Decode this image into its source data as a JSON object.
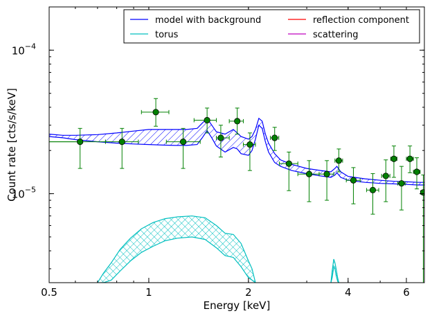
{
  "chart_data": {
    "type": "scatter",
    "xlabel": "Energy [keV]",
    "ylabel": "Count rate [cts/s/keV]",
    "xscale": "log",
    "yscale": "log",
    "xlim": [
      0.5,
      6.8
    ],
    "ylim": [
      2.4e-06,
      0.0002
    ],
    "x_ticks": [
      0.5,
      1,
      2,
      4,
      6
    ],
    "x_tick_labels": [
      "0.5",
      "1",
      "2",
      "4",
      "6"
    ],
    "y_ticks": [
      1e-05,
      0.0001
    ],
    "y_tick_labels": [
      [
        "10",
        "−5"
      ],
      [
        "10",
        "−4"
      ]
    ],
    "legend": {
      "placement": "top-right",
      "columns": 2,
      "entries": [
        {
          "label": "model with background",
          "color": "#0000ff"
        },
        {
          "label": "reflection component",
          "color": "#ff0000"
        },
        {
          "label": "torus",
          "color": "#00bfbf"
        },
        {
          "label": "scattering",
          "color": "#bf00bf"
        }
      ]
    },
    "colors": {
      "model": "#0000ff",
      "torus": "#00bfbf",
      "data_marker": "#008000",
      "data_errorbar": "#008000"
    },
    "data_points": [
      {
        "x": 0.5,
        "xerr": [
          0.5,
          0.62
        ],
        "y": 2.3e-05,
        "yerr": [
          2.3e-05,
          2.3e-05
        ]
      },
      {
        "x": 0.62,
        "xerr": [
          0.5,
          0.74
        ],
        "y": 2.3e-05,
        "yerr": [
          1.5e-05,
          2.85e-05
        ]
      },
      {
        "x": 0.83,
        "xerr": [
          0.74,
          0.93
        ],
        "y": 2.3e-05,
        "yerr": [
          1.5e-05,
          2.85e-05
        ]
      },
      {
        "x": 1.05,
        "xerr": [
          0.95,
          1.15
        ],
        "y": 3.7e-05,
        "yerr": [
          2.95e-05,
          4.6e-05
        ]
      },
      {
        "x": 1.27,
        "xerr": [
          1.13,
          1.43
        ],
        "y": 2.3e-05,
        "yerr": [
          1.5e-05,
          2.85e-05
        ]
      },
      {
        "x": 1.5,
        "xerr": [
          1.37,
          1.6
        ],
        "y": 3.25e-05,
        "yerr": [
          2.65e-05,
          3.95e-05
        ]
      },
      {
        "x": 1.65,
        "xerr": [
          1.6,
          1.75
        ],
        "y": 2.45e-05,
        "yerr": [
          1.8e-05,
          3e-05
        ]
      },
      {
        "x": 1.85,
        "xerr": [
          1.75,
          1.93
        ],
        "y": 3.2e-05,
        "yerr": [
          2.6e-05,
          3.95e-05
        ]
      },
      {
        "x": 2.02,
        "xerr": [
          1.93,
          2.1
        ],
        "y": 2.2e-05,
        "yerr": [
          1.45e-05,
          2.65e-05
        ]
      },
      {
        "x": 2.4,
        "xerr": [
          2.33,
          2.47
        ],
        "y": 2.45e-05,
        "yerr": [
          2e-05,
          2.9e-05
        ]
      },
      {
        "x": 2.65,
        "xerr": [
          2.48,
          2.82
        ],
        "y": 1.62e-05,
        "yerr": [
          1.05e-05,
          1.95e-05
        ]
      },
      {
        "x": 3.05,
        "xerr": [
          2.82,
          3.27
        ],
        "y": 1.37e-05,
        "yerr": [
          8.8e-06,
          1.7e-05
        ]
      },
      {
        "x": 3.45,
        "xerr": [
          3.27,
          3.62
        ],
        "y": 1.37e-05,
        "yerr": [
          9e-06,
          1.7e-05
        ]
      },
      {
        "x": 3.75,
        "xerr": [
          3.65,
          3.85
        ],
        "y": 1.7e-05,
        "yerr": [
          1.42e-05,
          2.05e-05
        ]
      },
      {
        "x": 4.15,
        "xerr": [
          3.95,
          4.35
        ],
        "y": 1.24e-05,
        "yerr": [
          8.5e-06,
          1.52e-05
        ]
      },
      {
        "x": 4.75,
        "xerr": [
          4.55,
          4.95
        ],
        "y": 1.06e-05,
        "yerr": [
          7.2e-06,
          1.38e-05
        ]
      },
      {
        "x": 5.2,
        "xerr": [
          5.05,
          5.35
        ],
        "y": 1.33e-05,
        "yerr": [
          8.8e-06,
          1.72e-05
        ]
      },
      {
        "x": 5.5,
        "xerr": [
          5.38,
          5.62
        ],
        "y": 1.75e-05,
        "yerr": [
          1.3e-05,
          2.15e-05
        ]
      },
      {
        "x": 5.8,
        "xerr": [
          5.65,
          5.95
        ],
        "y": 1.18e-05,
        "yerr": [
          7.7e-06,
          1.55e-05
        ]
      },
      {
        "x": 6.15,
        "xerr": [
          6.0,
          6.3
        ],
        "y": 1.75e-05,
        "yerr": [
          1.4e-05,
          2.15e-05
        ]
      },
      {
        "x": 6.45,
        "xerr": [
          6.3,
          6.6
        ],
        "y": 1.42e-05,
        "yerr": [
          1.08e-05,
          1.78e-05
        ]
      },
      {
        "x": 6.75,
        "xerr": [
          6.62,
          6.8
        ],
        "y": 1.02e-05,
        "yerr": [
          2.4e-06,
          1.35e-05
        ]
      }
    ],
    "model_band": {
      "x": [
        0.5,
        0.55,
        0.6,
        0.7,
        0.8,
        0.9,
        1.0,
        1.1,
        1.2,
        1.3,
        1.4,
        1.45,
        1.5,
        1.55,
        1.6,
        1.7,
        1.8,
        1.85,
        1.9,
        2.0,
        2.05,
        2.1,
        2.15,
        2.2,
        2.25,
        2.3,
        2.4,
        2.5,
        2.7,
        3.0,
        3.3,
        3.55,
        3.65,
        3.7,
        3.8,
        4.0,
        4.5,
        5.0,
        5.5,
        6.0,
        6.5,
        6.8
      ],
      "upper": [
        2.6e-05,
        2.55e-05,
        2.55e-05,
        2.58e-05,
        2.65e-05,
        2.73e-05,
        2.8e-05,
        2.8e-05,
        2.8e-05,
        2.8e-05,
        2.85e-05,
        3.1e-05,
        3.35e-05,
        3e-05,
        2.7e-05,
        2.6e-05,
        2.8e-05,
        2.65e-05,
        2.5e-05,
        2.4e-05,
        2.5e-05,
        2.8e-05,
        3.35e-05,
        3.2e-05,
        2.6e-05,
        2.25e-05,
        1.9e-05,
        1.72e-05,
        1.6e-05,
        1.5e-05,
        1.45e-05,
        1.42e-05,
        1.5e-05,
        1.55e-05,
        1.42e-05,
        1.32e-05,
        1.27e-05,
        1.24e-05,
        1.22e-05,
        1.21e-05,
        1.2e-05,
        1.2e-05
      ],
      "lower": [
        2.5e-05,
        2.45e-05,
        2.38e-05,
        2.3e-05,
        2.25e-05,
        2.22e-05,
        2.2e-05,
        2.18e-05,
        2.17e-05,
        2.17e-05,
        2.2e-05,
        2.45e-05,
        2.75e-05,
        2.45e-05,
        2.15e-05,
        1.95e-05,
        2.1e-05,
        2.05e-05,
        1.9e-05,
        1.85e-05,
        2e-05,
        2.4e-05,
        3e-05,
        2.85e-05,
        2.3e-05,
        1.95e-05,
        1.65e-05,
        1.55e-05,
        1.45e-05,
        1.38e-05,
        1.33e-05,
        1.3e-05,
        1.35e-05,
        1.4e-05,
        1.3e-05,
        1.24e-05,
        1.2e-05,
        1.18e-05,
        1.17e-05,
        1.16e-05,
        1.15e-05,
        1.15e-05
      ]
    },
    "torus_band": {
      "x": [
        0.7,
        0.73,
        0.77,
        0.82,
        0.88,
        0.95,
        1.03,
        1.12,
        1.22,
        1.35,
        1.48,
        1.6,
        1.7,
        1.8,
        1.9,
        2.0,
        2.05,
        2.1
      ],
      "upper": [
        2.4e-06,
        2.8e-06,
        3.3e-06,
        4.1e-06,
        4.9e-06,
        5.7e-06,
        6.3e-06,
        6.7e-06,
        6.9e-06,
        7e-06,
        6.8e-06,
        6e-06,
        5.3e-06,
        5.2e-06,
        4.5e-06,
        3.4e-06,
        3e-06,
        2.4e-06
      ],
      "lower": [
        2.4e-06,
        2.4e-06,
        2.5e-06,
        2.9e-06,
        3.4e-06,
        3.9e-06,
        4.3e-06,
        4.7e-06,
        4.9e-06,
        5e-06,
        4.8e-06,
        4.2e-06,
        3.7e-06,
        3.6e-06,
        3.1e-06,
        2.6e-06,
        2.5e-06,
        2.4e-06
      ]
    },
    "torus_line_peak": {
      "x": [
        3.55,
        3.58,
        3.62,
        3.65,
        3.68,
        3.72,
        3.75
      ],
      "upper": [
        2.4e-06,
        2.9e-06,
        3.5e-06,
        3.3e-06,
        3e-06,
        2.6e-06,
        2.4e-06
      ],
      "lower": [
        2.4e-06,
        2.6e-06,
        3.1e-06,
        3e-06,
        2.7e-06,
        2.45e-06,
        2.4e-06
      ]
    }
  }
}
